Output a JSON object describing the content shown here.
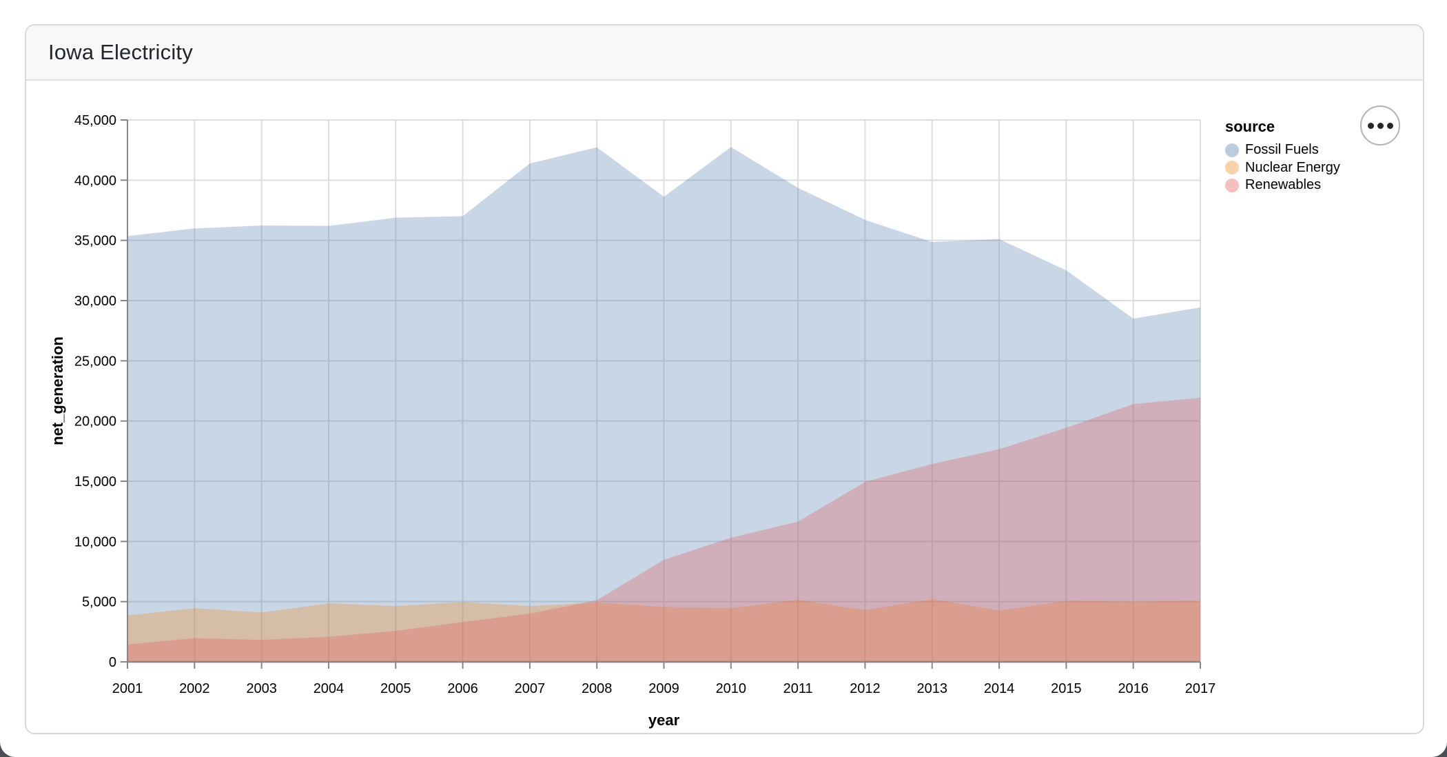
{
  "header": {
    "title": "Iowa Electricity"
  },
  "chart_data": {
    "type": "area",
    "layered": true,
    "title": "Iowa Electricity",
    "xlabel": "year",
    "ylabel": "net_generation",
    "legend_title": "source",
    "legend_position": "right",
    "grid": true,
    "fill_opacity": 0.3,
    "legend_swatch_opacity": 0.38,
    "ylim": [
      0,
      45000
    ],
    "ytick_step": 5000,
    "x": [
      2001,
      2002,
      2003,
      2004,
      2005,
      2006,
      2007,
      2008,
      2009,
      2010,
      2011,
      2012,
      2013,
      2014,
      2015,
      2016,
      2017
    ],
    "series": [
      {
        "name": "Fossil Fuels",
        "color": "#4c78a8",
        "values": [
          35361,
          35991,
          36234,
          36205,
          36883,
          37014,
          41389,
          42734,
          38620,
          42750,
          39361,
          36706,
          34862,
          35101,
          32512,
          28501,
          29437
        ]
      },
      {
        "name": "Nuclear Energy",
        "color": "#f58518",
        "values": [
          3853,
          4457,
          4097,
          4862,
          4629,
          4963,
          4640,
          4922,
          4566,
          4451,
          5161,
          4291,
          5210,
          4259,
          5063,
          4996,
          5070
        ]
      },
      {
        "name": "Renewables",
        "color": "#e45756",
        "values": [
          1437,
          1978,
          1828,
          2084,
          2577,
          3309,
          4010,
          5127,
          8484,
          10305,
          11644,
          14946,
          16433,
          17661,
          19437,
          21404,
          21933
        ]
      }
    ],
    "colors": {
      "grid": "#dddddd",
      "axis": "#858585",
      "label": "#000000"
    }
  }
}
